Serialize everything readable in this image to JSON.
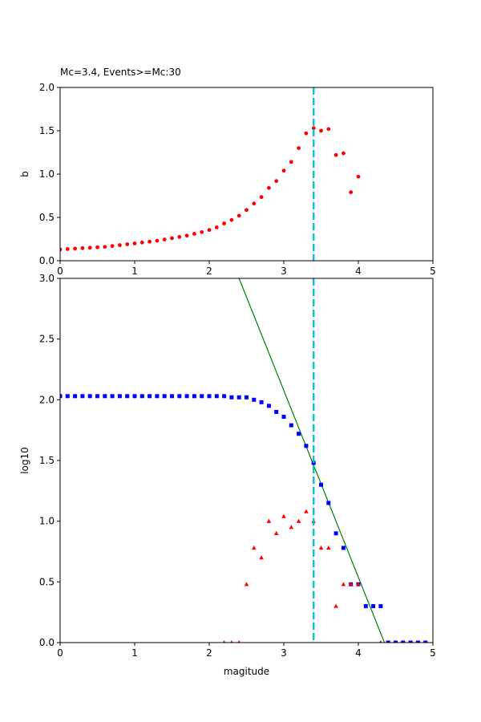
{
  "chart_data": [
    {
      "type": "scatter",
      "title": "Mc=3.4, Events>=Mc:30",
      "xlabel": "",
      "ylabel": "b",
      "xlim": [
        0,
        5
      ],
      "ylim": [
        0,
        2.0
      ],
      "xticks": [
        "0",
        "1",
        "2",
        "3",
        "4",
        "5"
      ],
      "yticks": [
        "0.0",
        "0.5",
        "1.0",
        "1.5",
        "2.0"
      ],
      "grid": false,
      "vline": {
        "x": 3.4,
        "color": "#17becf",
        "style": "dashed"
      },
      "series": [
        {
          "color": "#ff0000",
          "marker": "circle",
          "x": [
            0.0,
            0.1,
            0.2,
            0.3,
            0.4,
            0.5,
            0.6,
            0.7,
            0.8,
            0.9,
            1.0,
            1.1,
            1.2,
            1.3,
            1.4,
            1.5,
            1.6,
            1.7,
            1.8,
            1.9,
            2.0,
            2.1,
            2.2,
            2.3,
            2.4,
            2.5,
            2.6,
            2.7,
            2.8,
            2.9,
            3.0,
            3.1,
            3.2,
            3.3,
            3.4,
            3.5,
            3.6,
            3.7,
            3.8,
            3.9,
            4.0
          ],
          "y": [
            0.13,
            0.135,
            0.14,
            0.145,
            0.15,
            0.155,
            0.16,
            0.17,
            0.18,
            0.19,
            0.2,
            0.21,
            0.22,
            0.23,
            0.245,
            0.26,
            0.275,
            0.29,
            0.31,
            0.33,
            0.355,
            0.385,
            0.43,
            0.47,
            0.52,
            0.585,
            0.66,
            0.735,
            0.84,
            0.92,
            1.04,
            1.14,
            1.3,
            1.47,
            1.53,
            1.5,
            1.52,
            1.22,
            1.24,
            0.79,
            0.97
          ]
        }
      ]
    },
    {
      "type": "scatter",
      "title": "",
      "xlabel": "magitude",
      "ylabel": "log10",
      "xlim": [
        0,
        5
      ],
      "ylim": [
        0,
        3.0
      ],
      "xticks": [
        "0",
        "1",
        "2",
        "3",
        "4",
        "5"
      ],
      "yticks": [
        "0.0",
        "0.5",
        "1.0",
        "1.5",
        "2.0",
        "2.5",
        "3.0"
      ],
      "grid": false,
      "vline": {
        "x": 3.4,
        "color": "#17becf",
        "style": "dashed"
      },
      "fit_line": {
        "color": "#008000",
        "x": [
          2.4,
          4.35
        ],
        "y": [
          3.0,
          0.0
        ]
      },
      "series": [
        {
          "color": "#0000ff",
          "marker": "square",
          "x": [
            0.0,
            0.1,
            0.2,
            0.3,
            0.4,
            0.5,
            0.6,
            0.7,
            0.8,
            0.9,
            1.0,
            1.1,
            1.2,
            1.3,
            1.4,
            1.5,
            1.6,
            1.7,
            1.8,
            1.9,
            2.0,
            2.1,
            2.2,
            2.3,
            2.4,
            2.5,
            2.6,
            2.7,
            2.8,
            2.9,
            3.0,
            3.1,
            3.2,
            3.3,
            3.4,
            3.5,
            3.6,
            3.7,
            3.8,
            3.9,
            4.0,
            4.1,
            4.2,
            4.3,
            4.4,
            4.5,
            4.6,
            4.7,
            4.8,
            4.9
          ],
          "y": [
            2.03,
            2.03,
            2.03,
            2.03,
            2.03,
            2.03,
            2.03,
            2.03,
            2.03,
            2.03,
            2.03,
            2.03,
            2.03,
            2.03,
            2.03,
            2.03,
            2.03,
            2.03,
            2.03,
            2.03,
            2.03,
            2.03,
            2.03,
            2.02,
            2.02,
            2.02,
            2.0,
            1.98,
            1.95,
            1.9,
            1.86,
            1.79,
            1.72,
            1.62,
            1.48,
            1.3,
            1.15,
            0.9,
            0.78,
            0.48,
            0.48,
            0.3,
            0.3,
            0.3,
            0.0,
            0.0,
            0.0,
            0.0,
            0.0,
            0.0
          ]
        },
        {
          "color": "#ff0000",
          "marker": "triangle",
          "x": [
            2.2,
            2.3,
            2.4,
            2.5,
            2.6,
            2.7,
            2.8,
            2.9,
            3.0,
            3.1,
            3.2,
            3.3,
            3.4,
            3.5,
            3.6,
            3.7,
            3.8,
            3.9,
            4.0,
            4.3
          ],
          "y": [
            0.0,
            0.0,
            0.0,
            0.48,
            0.78,
            0.7,
            1.0,
            0.9,
            1.04,
            0.95,
            1.0,
            1.08,
            1.0,
            0.78,
            0.78,
            0.3,
            0.48,
            0.48,
            0.48,
            0.0
          ]
        }
      ]
    }
  ]
}
